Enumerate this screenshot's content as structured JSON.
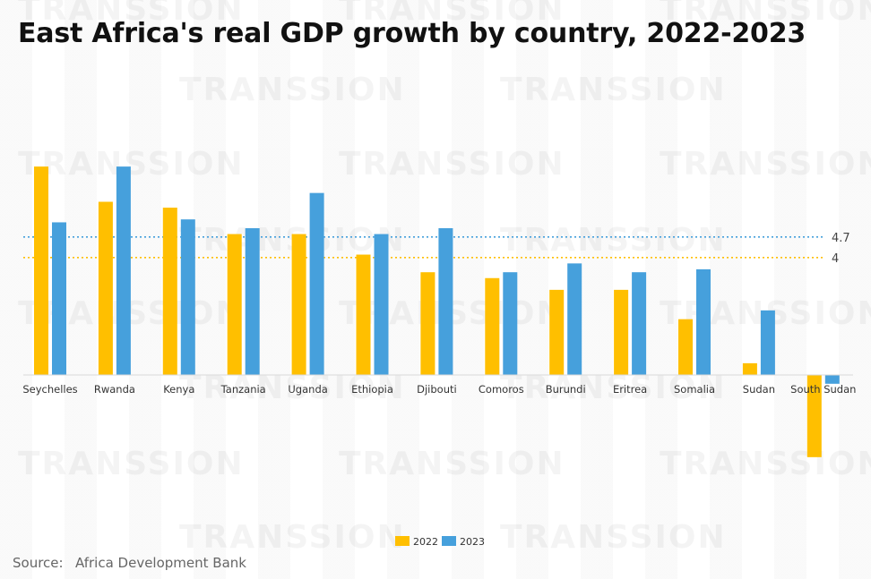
{
  "chart_data": {
    "type": "bar",
    "title": "East Africa's real GDP growth by country, 2022-2023",
    "categories": [
      "Seychelles",
      "Rwanda",
      "Kenya",
      "Tanzania",
      "Uganda",
      "Ethiopia",
      "Djibouti",
      "Comoros",
      "Burundi",
      "Eritrea",
      "Somalia",
      "Sudan",
      "South Sudan"
    ],
    "series": [
      {
        "name": "2022",
        "color": "#FFBF00",
        "values": [
          7.1,
          5.9,
          5.7,
          4.8,
          4.8,
          4.1,
          3.5,
          3.3,
          2.9,
          2.9,
          1.9,
          0.4,
          -2.8
        ]
      },
      {
        "name": "2023",
        "color": "#46A0DC",
        "values": [
          5.2,
          7.1,
          5.3,
          5.0,
          6.2,
          4.8,
          5.0,
          3.5,
          3.8,
          3.5,
          3.6,
          2.2,
          -0.3
        ]
      }
    ],
    "reference_lines": [
      {
        "value": 4.7,
        "label": "4.7",
        "color": "#46A0DC"
      },
      {
        "value": 4,
        "label": "4",
        "color": "#FFBF00"
      }
    ],
    "ylim": [
      -3.2,
      7.5
    ],
    "xlabel": "",
    "ylabel": "",
    "legend_position": "bottom-center"
  },
  "source": {
    "label": "Source:",
    "value": "Africa Development Bank"
  },
  "watermark": "TRANSSION"
}
